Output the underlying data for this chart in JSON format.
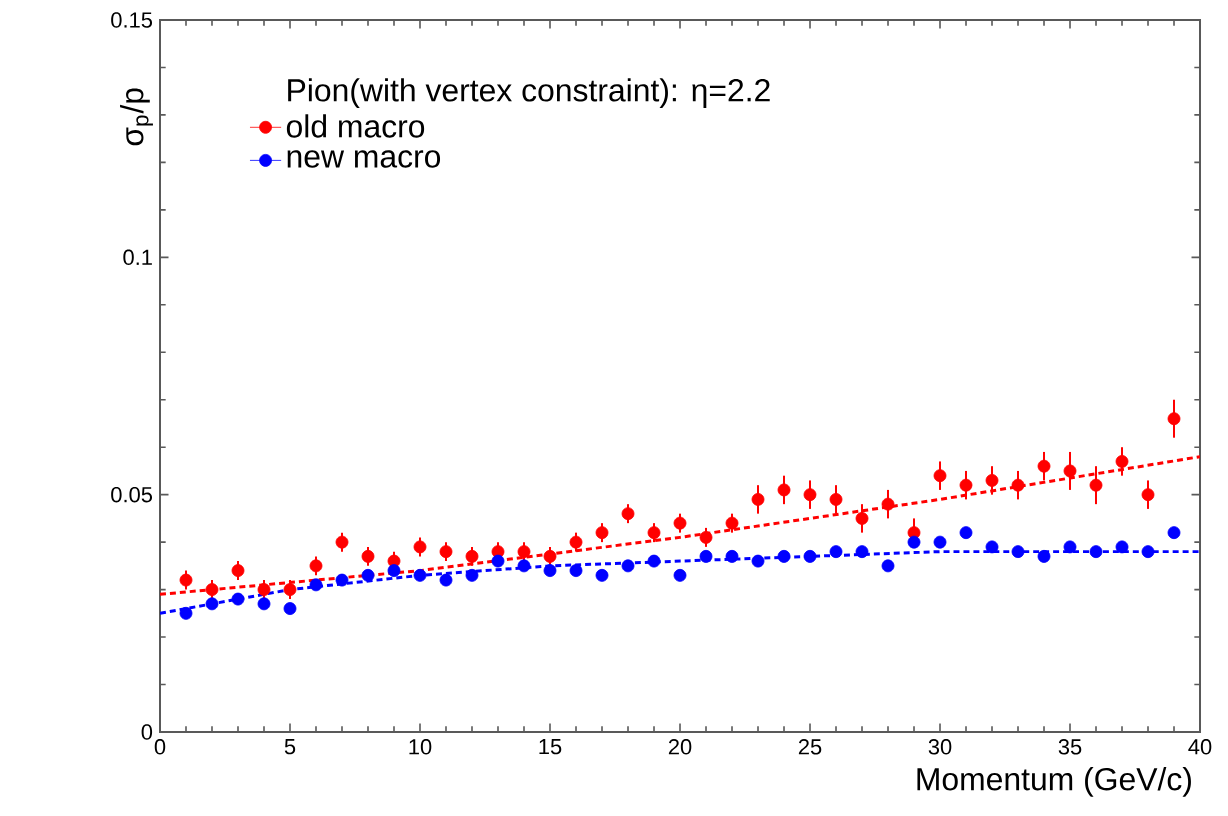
{
  "chart_data": {
    "type": "scatter",
    "xlabel": "Momentum (GeV/c)",
    "ylabel": "σ$_{p}$/p",
    "legend_title": "Pion(with vertex constraint): η=2.2",
    "xlim": [
      0,
      40
    ],
    "ylim": [
      0,
      0.15
    ],
    "xticks": [
      0,
      5,
      10,
      15,
      20,
      25,
      30,
      35,
      40
    ],
    "yticks": [
      0,
      0.05,
      0.1,
      0.15
    ],
    "grid": false,
    "legend": "top left",
    "series": [
      {
        "name": "old macro",
        "color": "#ff0000",
        "marker": "circle",
        "x": [
          1,
          2,
          3,
          4,
          5,
          6,
          7,
          8,
          9,
          10,
          11,
          12,
          13,
          14,
          15,
          16,
          17,
          18,
          19,
          20,
          21,
          22,
          23,
          24,
          25,
          26,
          27,
          28,
          29,
          30,
          31,
          32,
          33,
          34,
          35,
          36,
          37,
          38,
          39
        ],
        "values": [
          0.032,
          0.03,
          0.034,
          0.03,
          0.03,
          0.035,
          0.04,
          0.037,
          0.036,
          0.039,
          0.038,
          0.037,
          0.038,
          0.038,
          0.037,
          0.04,
          0.042,
          0.046,
          0.042,
          0.044,
          0.041,
          0.044,
          0.049,
          0.051,
          0.05,
          0.049,
          0.045,
          0.048,
          0.042,
          0.054,
          0.052,
          0.053,
          0.052,
          0.056,
          0.055,
          0.052,
          0.057,
          0.05,
          0.066
        ],
        "errors": [
          0.002,
          0.002,
          0.002,
          0.002,
          0.002,
          0.002,
          0.002,
          0.002,
          0.002,
          0.002,
          0.002,
          0.002,
          0.002,
          0.002,
          0.002,
          0.002,
          0.002,
          0.002,
          0.002,
          0.002,
          0.002,
          0.002,
          0.003,
          0.003,
          0.003,
          0.003,
          0.003,
          0.003,
          0.003,
          0.003,
          0.003,
          0.003,
          0.003,
          0.003,
          0.004,
          0.004,
          0.003,
          0.003,
          0.004
        ]
      },
      {
        "name": "new macro",
        "color": "#0000ff",
        "marker": "circle",
        "x": [
          1,
          2,
          3,
          4,
          5,
          6,
          7,
          8,
          9,
          10,
          11,
          12,
          13,
          14,
          15,
          16,
          17,
          18,
          19,
          20,
          21,
          22,
          23,
          24,
          25,
          26,
          27,
          28,
          29,
          30,
          31,
          32,
          33,
          34,
          35,
          36,
          37,
          38,
          39
        ],
        "values": [
          0.025,
          0.027,
          0.028,
          0.027,
          0.026,
          0.031,
          0.032,
          0.033,
          0.034,
          0.033,
          0.032,
          0.033,
          0.036,
          0.035,
          0.034,
          0.034,
          0.033,
          0.035,
          0.036,
          0.033,
          0.037,
          0.037,
          0.036,
          0.037,
          0.037,
          0.038,
          0.038,
          0.035,
          0.04,
          0.04,
          0.042,
          0.039,
          0.038,
          0.037,
          0.039,
          0.038,
          0.039,
          0.038,
          0.042
        ]
      },
      {
        "color": "#ff0000",
        "type": "line",
        "line_style": "dashed",
        "marker": "none",
        "x": [
          0,
          10,
          20,
          30,
          40
        ],
        "values": [
          0.029,
          0.034,
          0.041,
          0.049,
          0.058
        ]
      },
      {
        "color": "#0000ff",
        "type": "line",
        "line_style": "dashed",
        "marker": "none",
        "x": [
          0,
          5,
          10,
          15,
          20,
          25,
          30,
          35,
          40
        ],
        "values": [
          0.025,
          0.03,
          0.033,
          0.035,
          0.036,
          0.037,
          0.038,
          0.038,
          0.038
        ]
      }
    ]
  }
}
